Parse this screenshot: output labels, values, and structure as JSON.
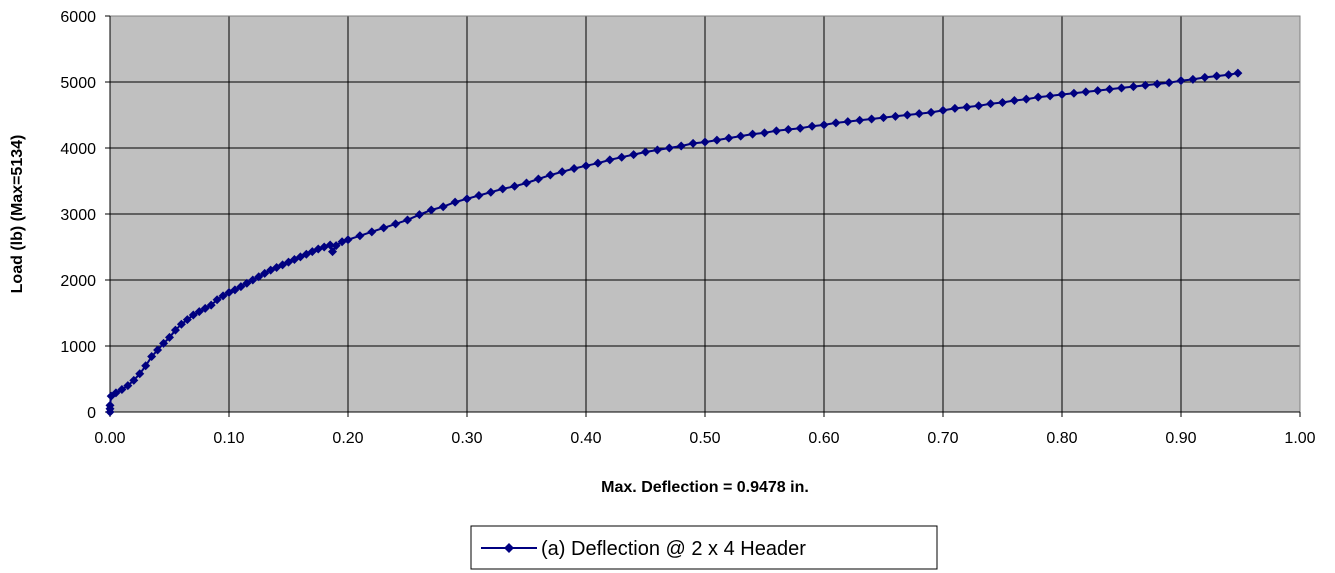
{
  "chart_data": {
    "type": "line",
    "title": "",
    "xlabel": "Max. Deflection = 0.9478 in.",
    "ylabel": "Load (lb) (Max=5134)",
    "xlim": [
      0,
      1
    ],
    "ylim": [
      0,
      6000
    ],
    "x_ticks": [
      "0.00",
      "0.10",
      "0.20",
      "0.30",
      "0.40",
      "0.50",
      "0.60",
      "0.70",
      "0.80",
      "0.90",
      "1.00"
    ],
    "y_ticks": [
      "0",
      "1000",
      "2000",
      "3000",
      "4000",
      "5000",
      "6000"
    ],
    "grid": true,
    "legend_position": "bottom",
    "plot_background": "#c0c0c0",
    "series": [
      {
        "name": "(a) Deflection @ 2 x 4 Header",
        "color": "#000080",
        "marker": "diamond",
        "points": [
          [
            0.0,
            0
          ],
          [
            0.0,
            50
          ],
          [
            0.0,
            100
          ],
          [
            0.001,
            240
          ],
          [
            0.005,
            290
          ],
          [
            0.01,
            340
          ],
          [
            0.015,
            400
          ],
          [
            0.02,
            480
          ],
          [
            0.025,
            580
          ],
          [
            0.03,
            700
          ],
          [
            0.035,
            840
          ],
          [
            0.04,
            940
          ],
          [
            0.045,
            1040
          ],
          [
            0.05,
            1130
          ],
          [
            0.055,
            1240
          ],
          [
            0.06,
            1330
          ],
          [
            0.065,
            1400
          ],
          [
            0.07,
            1470
          ],
          [
            0.075,
            1520
          ],
          [
            0.08,
            1570
          ],
          [
            0.085,
            1620
          ],
          [
            0.09,
            1700
          ],
          [
            0.095,
            1760
          ],
          [
            0.1,
            1810
          ],
          [
            0.105,
            1850
          ],
          [
            0.11,
            1900
          ],
          [
            0.115,
            1950
          ],
          [
            0.12,
            2000
          ],
          [
            0.125,
            2050
          ],
          [
            0.13,
            2100
          ],
          [
            0.135,
            2150
          ],
          [
            0.14,
            2190
          ],
          [
            0.145,
            2230
          ],
          [
            0.15,
            2270
          ],
          [
            0.155,
            2310
          ],
          [
            0.16,
            2350
          ],
          [
            0.165,
            2390
          ],
          [
            0.17,
            2430
          ],
          [
            0.175,
            2470
          ],
          [
            0.18,
            2500
          ],
          [
            0.185,
            2530
          ],
          [
            0.187,
            2430
          ],
          [
            0.19,
            2520
          ],
          [
            0.195,
            2580
          ],
          [
            0.2,
            2610
          ],
          [
            0.21,
            2670
          ],
          [
            0.22,
            2730
          ],
          [
            0.23,
            2790
          ],
          [
            0.24,
            2850
          ],
          [
            0.25,
            2910
          ],
          [
            0.26,
            2990
          ],
          [
            0.27,
            3060
          ],
          [
            0.28,
            3110
          ],
          [
            0.29,
            3180
          ],
          [
            0.3,
            3230
          ],
          [
            0.31,
            3280
          ],
          [
            0.32,
            3330
          ],
          [
            0.33,
            3380
          ],
          [
            0.34,
            3420
          ],
          [
            0.35,
            3470
          ],
          [
            0.36,
            3530
          ],
          [
            0.37,
            3590
          ],
          [
            0.38,
            3640
          ],
          [
            0.39,
            3690
          ],
          [
            0.4,
            3730
          ],
          [
            0.41,
            3770
          ],
          [
            0.42,
            3820
          ],
          [
            0.43,
            3860
          ],
          [
            0.44,
            3900
          ],
          [
            0.45,
            3940
          ],
          [
            0.46,
            3970
          ],
          [
            0.47,
            4000
          ],
          [
            0.48,
            4030
          ],
          [
            0.49,
            4070
          ],
          [
            0.5,
            4090
          ],
          [
            0.51,
            4120
          ],
          [
            0.52,
            4150
          ],
          [
            0.53,
            4180
          ],
          [
            0.54,
            4210
          ],
          [
            0.55,
            4230
          ],
          [
            0.56,
            4260
          ],
          [
            0.57,
            4280
          ],
          [
            0.58,
            4300
          ],
          [
            0.59,
            4330
          ],
          [
            0.6,
            4350
          ],
          [
            0.61,
            4380
          ],
          [
            0.62,
            4400
          ],
          [
            0.63,
            4420
          ],
          [
            0.64,
            4440
          ],
          [
            0.65,
            4460
          ],
          [
            0.66,
            4480
          ],
          [
            0.67,
            4500
          ],
          [
            0.68,
            4520
          ],
          [
            0.69,
            4540
          ],
          [
            0.7,
            4570
          ],
          [
            0.71,
            4600
          ],
          [
            0.72,
            4620
          ],
          [
            0.73,
            4640
          ],
          [
            0.74,
            4670
          ],
          [
            0.75,
            4690
          ],
          [
            0.76,
            4720
          ],
          [
            0.77,
            4740
          ],
          [
            0.78,
            4770
          ],
          [
            0.79,
            4790
          ],
          [
            0.8,
            4810
          ],
          [
            0.81,
            4830
          ],
          [
            0.82,
            4850
          ],
          [
            0.83,
            4870
          ],
          [
            0.84,
            4890
          ],
          [
            0.85,
            4910
          ],
          [
            0.86,
            4930
          ],
          [
            0.87,
            4950
          ],
          [
            0.88,
            4970
          ],
          [
            0.89,
            4990
          ],
          [
            0.9,
            5020
          ],
          [
            0.91,
            5040
          ],
          [
            0.92,
            5070
          ],
          [
            0.93,
            5090
          ],
          [
            0.94,
            5110
          ],
          [
            0.9478,
            5134
          ]
        ]
      }
    ]
  }
}
